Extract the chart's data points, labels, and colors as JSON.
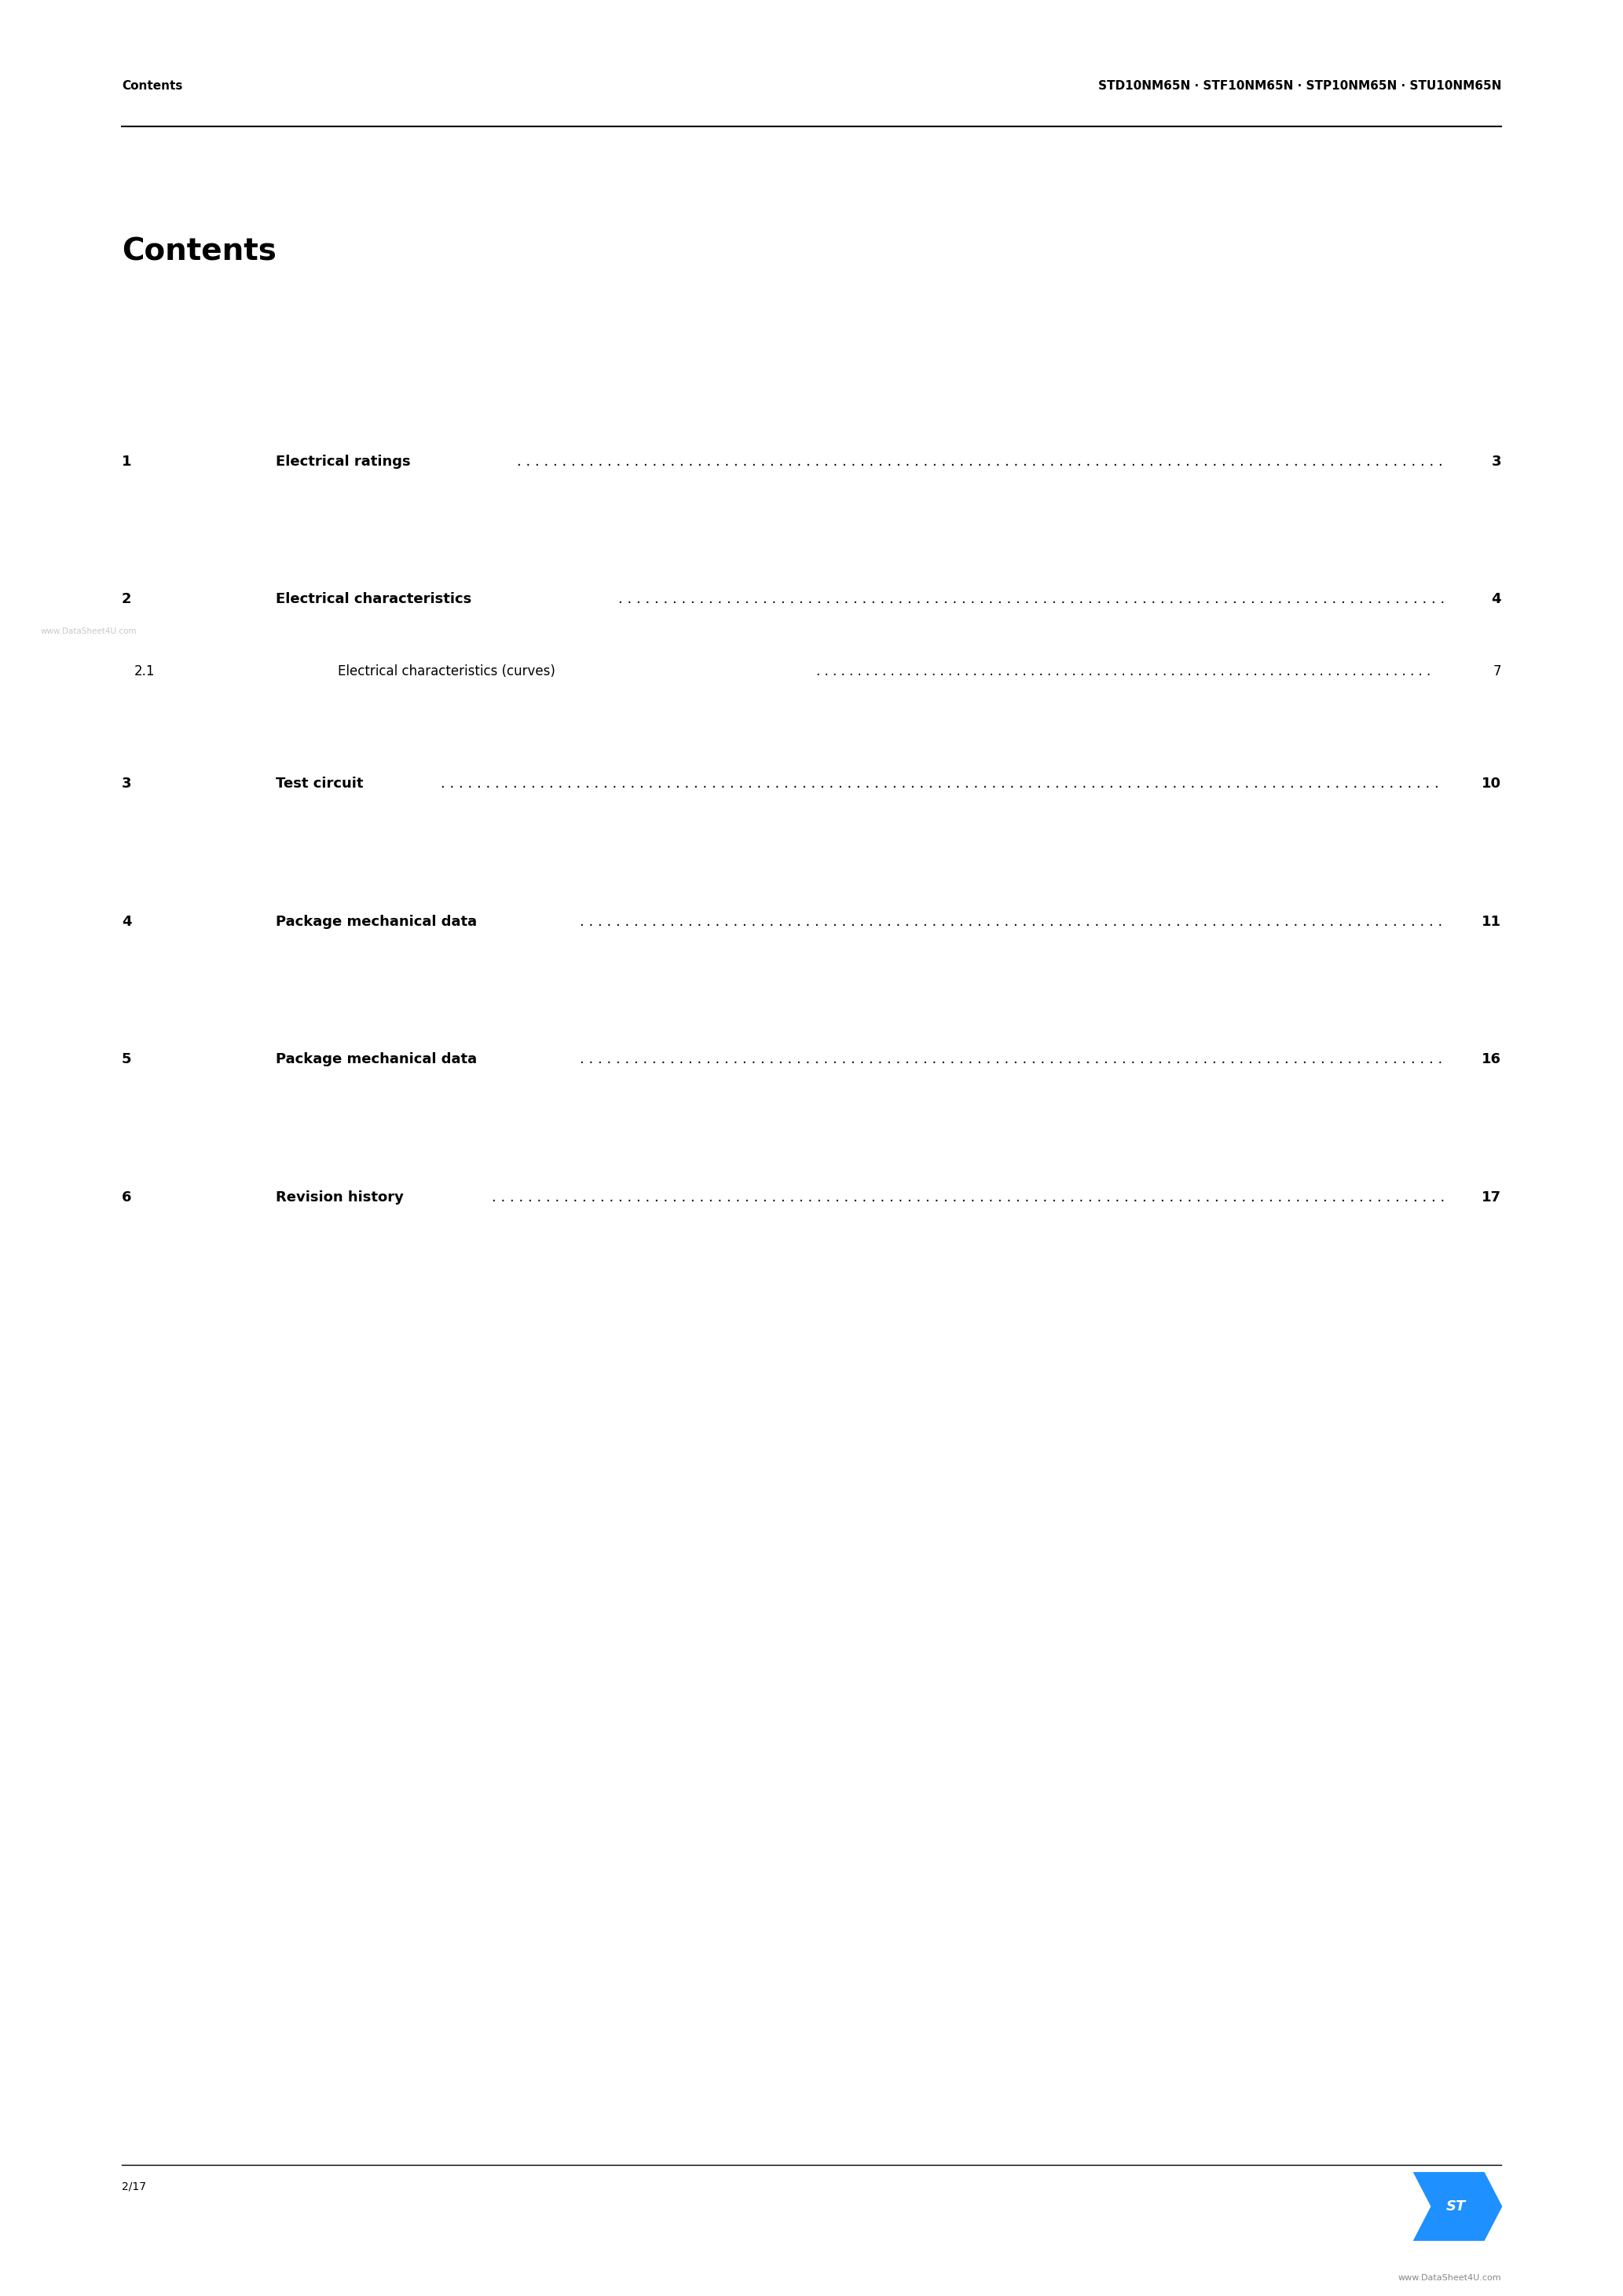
{
  "page_width": 20.66,
  "page_height": 29.24,
  "bg_color": "#ffffff",
  "header_left": "Contents",
  "header_right": "STD10NM65N · STF10NM65N · STP10NM65N · STU10NM65N",
  "title": "Contents",
  "entries": [
    {
      "number": "1",
      "title": "Electrical ratings",
      "page": "3",
      "bold": true,
      "indent": 0
    },
    {
      "number": "2",
      "title": "Electrical characteristics",
      "page": "4",
      "bold": true,
      "indent": 0
    },
    {
      "number": "2.1",
      "title": "Electrical characteristics (curves)",
      "page": "7",
      "bold": false,
      "indent": 1
    },
    {
      "number": "3",
      "title": "Test circuit",
      "page": "10",
      "bold": true,
      "indent": 0
    },
    {
      "number": "4",
      "title": "Package mechanical data",
      "page": "11",
      "bold": true,
      "indent": 0
    },
    {
      "number": "5",
      "title": "Package mechanical data",
      "page": "16",
      "bold": true,
      "indent": 0
    },
    {
      "number": "6",
      "title": "Revision history",
      "page": "17",
      "bold": true,
      "indent": 0
    }
  ],
  "footer_left": "2/17",
  "footer_watermark": "www.DataSheet4U.com",
  "footer_bottom_right": "www.DataSheet4U.com",
  "st_logo_color": "#1e90ff",
  "header_font_size": 11,
  "title_font_size": 28,
  "entry_font_size": 13,
  "sub_entry_font_size": 12,
  "footer_font_size": 10
}
